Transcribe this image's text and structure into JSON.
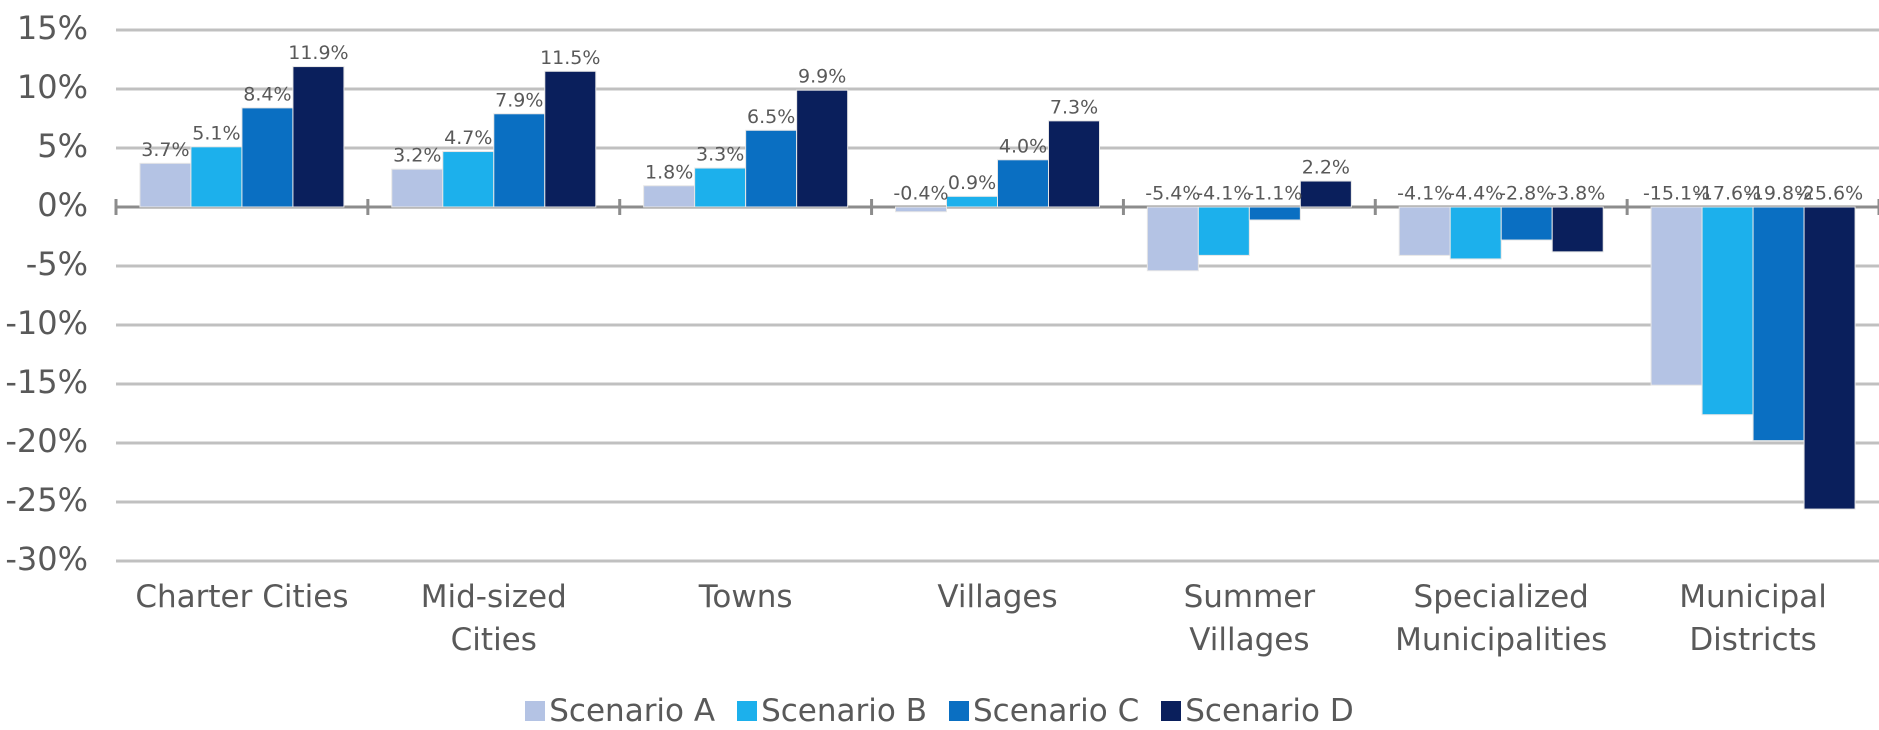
{
  "chart_data": {
    "type": "bar",
    "categories": [
      "Charter Cities",
      "Mid-sized Cities",
      "Towns",
      "Villages",
      "Summer Villages",
      "Specialized Municipalities",
      "Municipal Districts"
    ],
    "series": [
      {
        "name": "Scenario A",
        "color": "#b4c3e4",
        "values": [
          3.7,
          3.2,
          1.8,
          -0.4,
          -5.4,
          -4.1,
          -15.1
        ],
        "value_labels": [
          "3.7%",
          "3.2%",
          "1.8%",
          "-0.4%",
          "-5.4%",
          "-4.1%",
          "-15.1%"
        ]
      },
      {
        "name": "Scenario B",
        "color": "#1cb0ec",
        "values": [
          5.1,
          4.7,
          3.3,
          0.9,
          -4.1,
          -4.4,
          -17.6
        ],
        "value_labels": [
          "5.1%",
          "4.7%",
          "3.3%",
          "0.9%",
          "-4.1%",
          "-4.4%",
          "-17.6%"
        ]
      },
      {
        "name": "Scenario C",
        "color": "#0a6fc2",
        "values": [
          8.4,
          7.9,
          6.5,
          4.0,
          -1.1,
          -2.8,
          -19.8
        ],
        "value_labels": [
          "8.4%",
          "7.9%",
          "6.5%",
          "4.0%",
          "-1.1%",
          "-2.8%",
          "-19.8%"
        ]
      },
      {
        "name": "Scenario D",
        "color": "#0a1f5c",
        "values": [
          11.9,
          11.5,
          9.9,
          7.3,
          2.2,
          -3.8,
          -25.6
        ],
        "value_labels": [
          "11.9%",
          "11.5%",
          "9.9%",
          "7.3%",
          "2.2%",
          "-3.8%",
          "-25.6%"
        ]
      }
    ],
    "ylim": [
      -30,
      15
    ],
    "yticks": [
      {
        "value": -30,
        "label": "-30%"
      },
      {
        "value": -25,
        "label": "-25%"
      },
      {
        "value": -20,
        "label": "-20%"
      },
      {
        "value": -15,
        "label": "-15%"
      },
      {
        "value": -10,
        "label": "-10%"
      },
      {
        "value": -5,
        "label": "-5%"
      },
      {
        "value": 0,
        "label": "0%"
      },
      {
        "value": 5,
        "label": "5%"
      },
      {
        "value": 10,
        "label": "10%"
      },
      {
        "value": 15,
        "label": "15%"
      }
    ],
    "grid": true
  }
}
